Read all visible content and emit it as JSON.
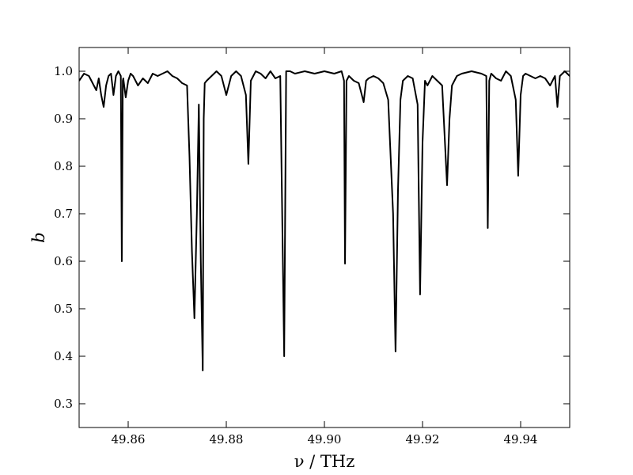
{
  "chart_data": {
    "type": "line",
    "title": "",
    "xlabel": "ν / THz",
    "ylabel": "b",
    "xlim": [
      49.85,
      49.95
    ],
    "ylim": [
      0.25,
      1.05
    ],
    "grid": false,
    "legend": "none",
    "line_color": "#000000",
    "x_ticks": [
      49.86,
      49.88,
      49.9,
      49.92,
      49.94
    ],
    "x_tick_labels": [
      "49.86",
      "49.88",
      "49.90",
      "49.92",
      "49.94"
    ],
    "y_ticks": [
      0.3,
      0.4,
      0.5,
      0.6,
      0.7,
      0.8,
      0.9,
      1.0
    ],
    "y_tick_labels": [
      "0.3",
      "0.4",
      "0.5",
      "0.6",
      "0.7",
      "0.8",
      "0.9",
      "1.0"
    ],
    "series": [
      {
        "x": [
          49.85,
          49.851,
          49.852,
          49.853,
          49.8535,
          49.854,
          49.8545,
          49.855,
          49.8555,
          49.856,
          49.8565,
          49.857,
          49.8575,
          49.858,
          49.8585,
          49.8587,
          49.8589,
          49.859,
          49.8595,
          49.86,
          49.8605,
          49.861,
          49.862,
          49.863,
          49.864,
          49.865,
          49.866,
          49.867,
          49.868,
          49.869,
          49.87,
          49.871,
          49.872,
          49.8725,
          49.873,
          49.8735,
          49.874,
          49.8744,
          49.8748,
          49.8752,
          49.8754,
          49.8756,
          49.876,
          49.877,
          49.878,
          49.879,
          49.88,
          49.881,
          49.882,
          49.883,
          49.884,
          49.8845,
          49.885,
          49.886,
          49.887,
          49.888,
          49.889,
          49.89,
          49.891,
          49.8918,
          49.8922,
          49.893,
          49.894,
          49.896,
          49.898,
          49.9,
          49.902,
          49.9035,
          49.904,
          49.9042,
          49.9045,
          49.905,
          49.906,
          49.907,
          49.908,
          49.9085,
          49.909,
          49.91,
          49.911,
          49.912,
          49.913,
          49.914,
          49.9145,
          49.915,
          49.9155,
          49.916,
          49.917,
          49.918,
          49.919,
          49.9195,
          49.92,
          49.9205,
          49.921,
          49.922,
          49.923,
          49.924,
          49.925,
          49.9255,
          49.926,
          49.927,
          49.928,
          49.93,
          49.932,
          49.933,
          49.9333,
          49.9336,
          49.934,
          49.935,
          49.936,
          49.937,
          49.938,
          49.939,
          49.9395,
          49.94,
          49.9405,
          49.941,
          49.942,
          49.943,
          49.944,
          49.945,
          49.946,
          49.947,
          49.9475,
          49.948,
          49.949,
          49.95
        ],
        "y": [
          0.98,
          0.995,
          0.99,
          0.97,
          0.96,
          0.985,
          0.95,
          0.925,
          0.97,
          0.99,
          0.995,
          0.95,
          0.99,
          1.0,
          0.99,
          0.6,
          0.98,
          0.985,
          0.945,
          0.98,
          0.995,
          0.99,
          0.97,
          0.985,
          0.975,
          0.995,
          0.99,
          0.995,
          1.0,
          0.99,
          0.985,
          0.975,
          0.97,
          0.82,
          0.62,
          0.48,
          0.7,
          0.93,
          0.6,
          0.37,
          0.9,
          0.975,
          0.98,
          0.99,
          1.0,
          0.99,
          0.95,
          0.99,
          1.0,
          0.99,
          0.95,
          0.805,
          0.98,
          1.0,
          0.995,
          0.985,
          1.0,
          0.985,
          0.99,
          0.4,
          1.0,
          1.0,
          0.995,
          1.0,
          0.995,
          1.0,
          0.995,
          1.0,
          0.98,
          0.595,
          0.98,
          0.99,
          0.98,
          0.975,
          0.935,
          0.98,
          0.985,
          0.99,
          0.985,
          0.975,
          0.94,
          0.7,
          0.41,
          0.75,
          0.94,
          0.98,
          0.99,
          0.985,
          0.93,
          0.53,
          0.85,
          0.98,
          0.97,
          0.99,
          0.98,
          0.97,
          0.76,
          0.9,
          0.97,
          0.99,
          0.995,
          1.0,
          0.995,
          0.99,
          0.67,
          0.98,
          0.995,
          0.985,
          0.98,
          1.0,
          0.99,
          0.94,
          0.78,
          0.95,
          0.99,
          0.995,
          0.99,
          0.985,
          0.99,
          0.985,
          0.97,
          0.99,
          0.925,
          0.99,
          1.0,
          0.99
        ]
      }
    ]
  }
}
